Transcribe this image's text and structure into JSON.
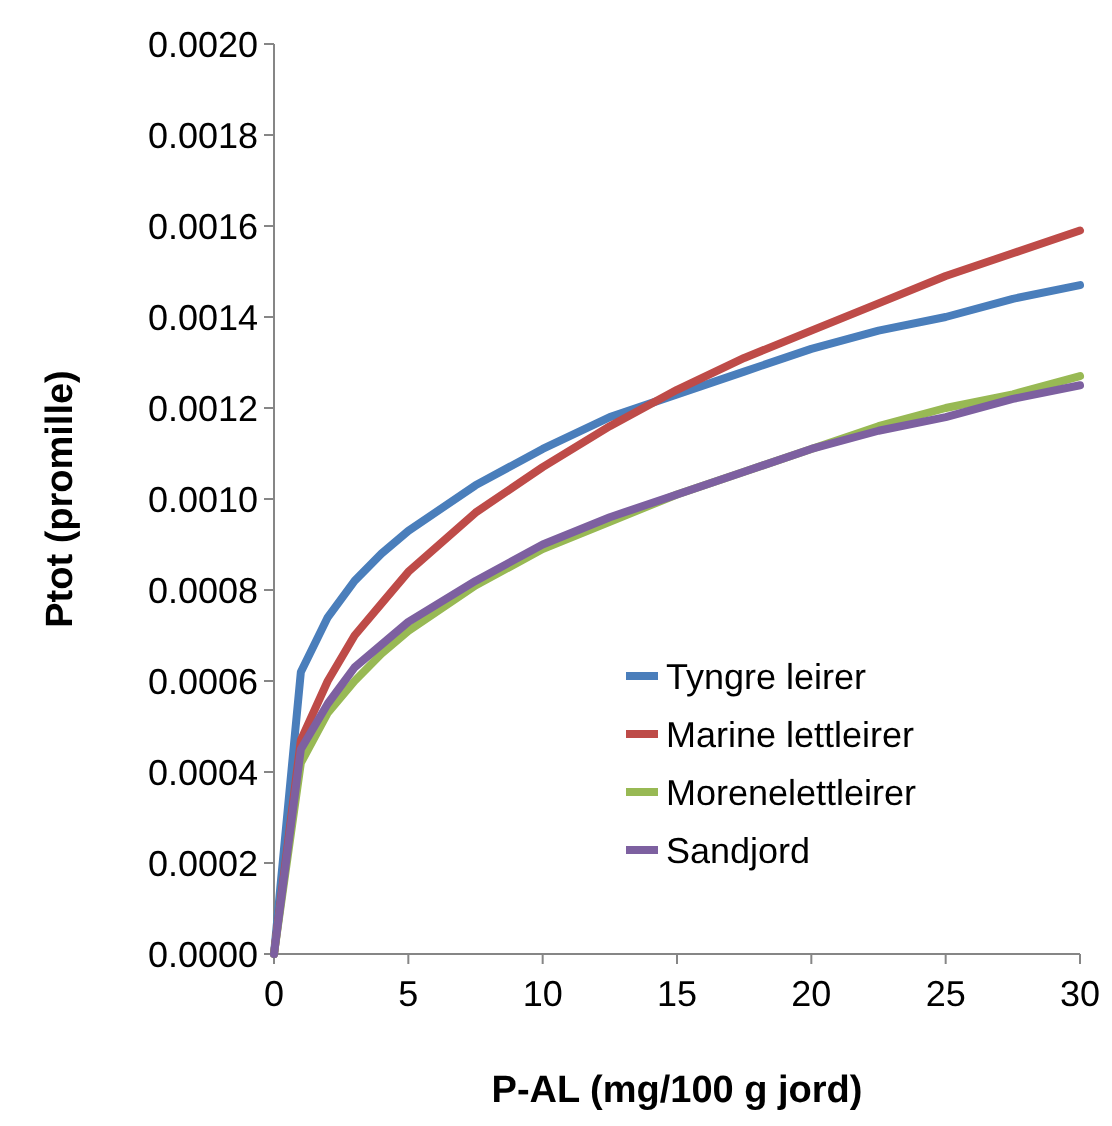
{
  "chart_data": {
    "type": "line",
    "xlabel": "P-AL (mg/100 g jord)",
    "ylabel": "Ptot (promille)",
    "x": [
      0,
      1,
      2,
      3,
      4,
      5,
      7.5,
      10,
      12.5,
      15,
      17.5,
      20,
      22.5,
      25,
      27.5,
      30
    ],
    "series": [
      {
        "name": "Tyngre leirer",
        "color": "#4a7ebb",
        "values": [
          0,
          0.00062,
          0.00074,
          0.00082,
          0.00088,
          0.00093,
          0.00103,
          0.00111,
          0.00118,
          0.00123,
          0.00128,
          0.00133,
          0.00137,
          0.0014,
          0.00144,
          0.00147
        ]
      },
      {
        "name": "Marine lettleirer",
        "color": "#be4b48",
        "values": [
          0,
          0.00047,
          0.0006,
          0.0007,
          0.00077,
          0.00084,
          0.00097,
          0.00107,
          0.00116,
          0.00124,
          0.00131,
          0.00137,
          0.00143,
          0.00149,
          0.00154,
          0.00159
        ]
      },
      {
        "name": "Morenelettleirer",
        "color": "#98b954",
        "values": [
          0,
          0.00042,
          0.00053,
          0.0006,
          0.00066,
          0.00071,
          0.00081,
          0.00089,
          0.00095,
          0.00101,
          0.00106,
          0.00111,
          0.00116,
          0.0012,
          0.00123,
          0.00127
        ]
      },
      {
        "name": "Sandjord",
        "color": "#7d60a0",
        "values": [
          0,
          0.00045,
          0.00055,
          0.00063,
          0.00068,
          0.00073,
          0.00082,
          0.0009,
          0.00096,
          0.00101,
          0.00106,
          0.00111,
          0.00115,
          0.00118,
          0.00122,
          0.00125
        ]
      }
    ],
    "xlim": [
      0,
      30
    ],
    "xticks": [
      0,
      5,
      10,
      15,
      20,
      25,
      30
    ],
    "ylim": [
      0,
      0.002
    ],
    "yticks": [
      {
        "value": 0,
        "label": "0.0000"
      },
      {
        "value": 0.0002,
        "label": "0.0002"
      },
      {
        "value": 0.0004,
        "label": "0.0004"
      },
      {
        "value": 0.0006,
        "label": "0.0006"
      },
      {
        "value": 0.0008,
        "label": "0.0008"
      },
      {
        "value": 0.001,
        "label": "0.0010"
      },
      {
        "value": 0.0012,
        "label": "0.0012"
      },
      {
        "value": 0.0014,
        "label": "0.0014"
      },
      {
        "value": 0.0016,
        "label": "0.0016"
      },
      {
        "value": 0.0018,
        "label": "0.0018"
      },
      {
        "value": 0.002,
        "label": "0.0020"
      }
    ],
    "grid": false,
    "legend": "bottom right",
    "marker": "none",
    "line_style": "solid"
  }
}
